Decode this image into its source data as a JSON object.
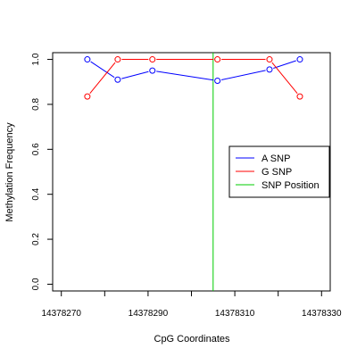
{
  "chart_data": {
    "type": "line",
    "xlabel": "CpG Coordinates",
    "ylabel": "Methylation Frequency",
    "xlim": [
      14378268,
      14378332
    ],
    "ylim": [
      -0.03,
      1.03
    ],
    "x_ticks": [
      14378270,
      14378280,
      14378290,
      14378300,
      14378310,
      14378320,
      14378330
    ],
    "x_tick_labels": [
      "14378270",
      "14378290",
      "14378310",
      "14378330"
    ],
    "x_tick_labels_at": [
      14378270,
      14378290,
      14378310,
      14378330
    ],
    "y_ticks": [
      0.0,
      0.2,
      0.4,
      0.6,
      0.8,
      1.0
    ],
    "y_tick_labels": [
      "0.0",
      "0.2",
      "0.4",
      "0.6",
      "0.8",
      "1.0"
    ],
    "grid": false,
    "legend_position": "right",
    "series": [
      {
        "name": "A SNP",
        "color": "#0000ff",
        "marker": "circle",
        "x": [
          14378276,
          14378283,
          14378291,
          14378306,
          14378318,
          14378325
        ],
        "y": [
          1.0,
          0.91,
          0.95,
          0.905,
          0.955,
          1.0
        ]
      },
      {
        "name": "G SNP",
        "color": "#ff0000",
        "marker": "circle",
        "x": [
          14378276,
          14378283,
          14378291,
          14378306,
          14378318,
          14378325
        ],
        "y": [
          0.835,
          1.0,
          1.0,
          1.0,
          1.0,
          0.835
        ]
      }
    ],
    "snp_position": {
      "name": "SNP Position",
      "x": 14378305,
      "color": "#00cc00"
    }
  }
}
